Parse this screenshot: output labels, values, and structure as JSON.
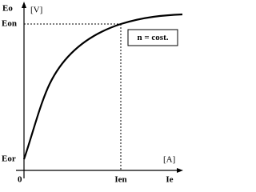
{
  "axes": {
    "y_label": "Eo",
    "y_unit": "[V]",
    "x_label": "Ie",
    "x_unit": "[A]",
    "origin": "0"
  },
  "markers": {
    "y_nominal": "Eon",
    "y_residual": "Eor",
    "x_nominal": "Ien"
  },
  "note": "n = cost."
}
